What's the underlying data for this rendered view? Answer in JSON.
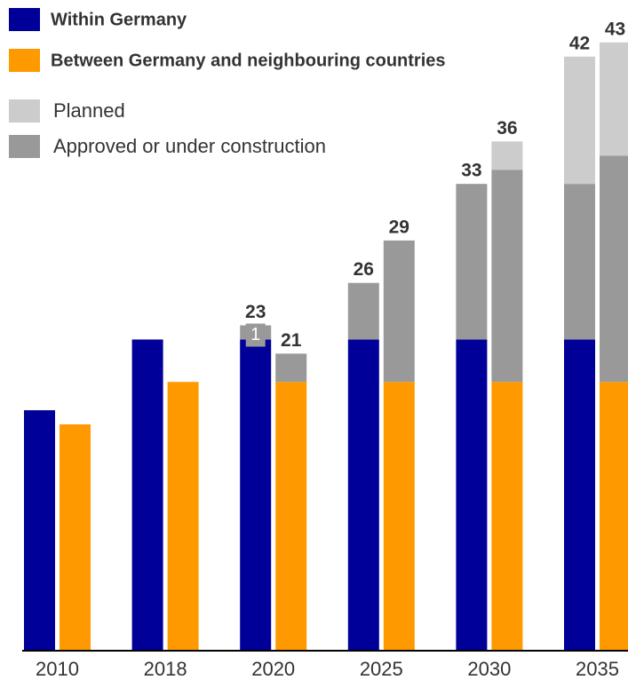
{
  "chart_data": {
    "type": "stacked_grouped_bar",
    "categories": [
      "2010",
      "2018",
      "2020",
      "2025",
      "2030",
      "2035"
    ],
    "series": [
      {
        "name": "Within Germany",
        "color": "#000099",
        "values": [
          [
            17,
            null
          ],
          [
            22,
            null
          ],
          [
            22,
            null
          ],
          [
            22,
            null
          ],
          [
            22,
            null
          ],
          [
            22,
            null
          ]
        ]
      },
      {
        "name": "Between Germany and neighbouring countries",
        "color": "#ff9900",
        "values": [
          [
            null,
            16
          ],
          [
            null,
            19
          ],
          [
            null,
            19
          ],
          [
            null,
            19
          ],
          [
            null,
            19
          ],
          [
            null,
            19
          ]
        ]
      },
      {
        "name": "Planned",
        "color": "#cccccc",
        "values": [
          [
            0,
            0
          ],
          [
            0,
            0
          ],
          [
            0,
            0
          ],
          [
            0,
            0
          ],
          [
            0,
            2
          ],
          [
            9,
            8
          ]
        ]
      },
      {
        "name": "Approved or under construction",
        "color": "#999999",
        "values": [
          [
            0,
            0
          ],
          [
            0,
            0
          ],
          [
            1,
            2
          ],
          [
            4,
            10
          ],
          [
            11,
            15
          ],
          [
            11,
            16
          ]
        ]
      }
    ],
    "stack_order": [
      0,
      1,
      3,
      2
    ],
    "totals": [
      [
        null,
        null
      ],
      [
        null,
        null
      ],
      [
        23,
        21
      ],
      [
        26,
        29
      ],
      [
        33,
        36
      ],
      [
        42,
        43
      ]
    ],
    "ylim": [
      0,
      46
    ]
  }
}
